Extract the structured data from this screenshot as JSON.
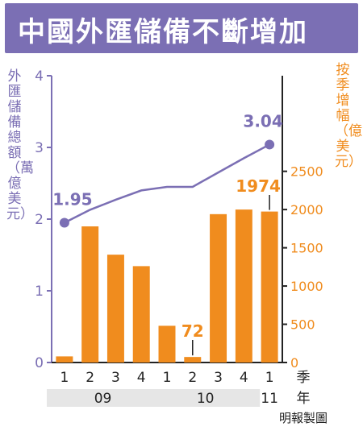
{
  "title": "中國外匯儲備不斷增加",
  "credit": "明報製圖",
  "colors": {
    "accent_purple": "#7b6fb4",
    "bar_orange": "#f08c1e",
    "year_band": "#e6e6e6"
  },
  "chart_data": {
    "type": "bar",
    "title": "中國外匯儲備不斷增加",
    "categories": [
      "1",
      "2",
      "3",
      "4",
      "1",
      "2",
      "3",
      "4",
      "1"
    ],
    "year_groups": [
      {
        "label": "09",
        "quarters": 4
      },
      {
        "label": "10",
        "quarters": 4
      },
      {
        "label": "11",
        "quarters": 1
      }
    ],
    "x_quarter_label": "季",
    "x_year_label": "年",
    "left_axis": {
      "label": "外匯儲備總額（萬億美元）",
      "ylim": [
        0,
        4
      ],
      "ticks": [
        0,
        1,
        2,
        3,
        4
      ]
    },
    "right_axis": {
      "label": "按季增幅（億美元）",
      "ylim": [
        0,
        3750
      ],
      "ticks": [
        0,
        500,
        1000,
        1500,
        2000,
        2500
      ]
    },
    "series": [
      {
        "name": "外匯儲備總額",
        "type": "line",
        "axis": "left",
        "values": [
          1.95,
          2.13,
          2.27,
          2.4,
          2.45,
          2.45,
          2.65,
          2.85,
          3.04
        ]
      },
      {
        "name": "按季增幅",
        "type": "bar",
        "axis": "right",
        "values": [
          80,
          1780,
          1410,
          1260,
          480,
          72,
          1940,
          2000,
          1974
        ]
      }
    ],
    "annotations": [
      {
        "series": 0,
        "index": 0,
        "text": "1.95"
      },
      {
        "series": 0,
        "index": 8,
        "text": "3.04"
      },
      {
        "series": 1,
        "index": 5,
        "text": "72"
      },
      {
        "series": 1,
        "index": 8,
        "text": "1974"
      }
    ],
    "grid": false,
    "legend": "none"
  }
}
